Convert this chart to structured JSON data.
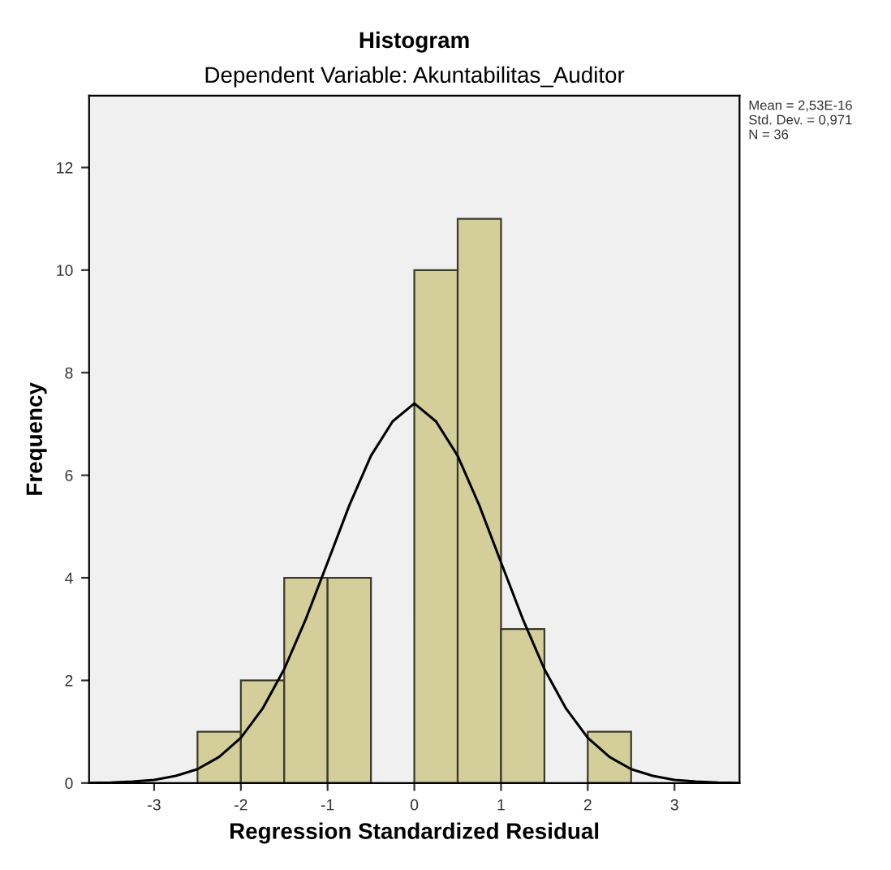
{
  "chart_data": {
    "type": "histogram",
    "title": "Histogram",
    "subtitle": "Dependent Variable: Akuntabilitas_Auditor",
    "xlabel": "Regression Standardized Residual",
    "ylabel": "Frequency",
    "bins": [
      -2.5,
      -2.0,
      -1.5,
      -1.0,
      -0.5,
      0.0,
      0.5,
      1.0,
      1.5,
      2.0,
      2.5
    ],
    "values": [
      1,
      2,
      4,
      4,
      0,
      10,
      11,
      3,
      0,
      1
    ],
    "color": "#d4cf9a",
    "series": [
      {
        "type": "line",
        "color": "#000000",
        "x": [
          -3.75,
          -3.5,
          -3.25,
          -3.0,
          -2.75,
          -2.5,
          -2.25,
          -2.0,
          -1.75,
          -1.5,
          -1.25,
          -1.0,
          -0.75,
          -0.5,
          -0.25,
          0.0,
          0.25,
          0.5,
          0.75,
          1.0,
          1.25,
          1.5,
          1.75,
          2.0,
          2.25,
          2.5,
          2.75,
          3.0,
          3.25,
          3.5,
          3.75
        ],
        "values": [
          0.0,
          0.01,
          0.03,
          0.06,
          0.14,
          0.27,
          0.51,
          0.88,
          1.45,
          2.22,
          3.2,
          4.3,
          5.41,
          6.38,
          7.05,
          7.4,
          7.05,
          6.38,
          5.41,
          4.3,
          3.2,
          2.22,
          1.45,
          0.88,
          0.51,
          0.27,
          0.14,
          0.06,
          0.03,
          0.01,
          0.0
        ]
      }
    ],
    "xlim": [
      -3.75,
      3.75
    ],
    "xticks": [
      -3,
      -2,
      -1,
      0,
      1,
      2,
      3
    ],
    "ylim": [
      0,
      13.4
    ],
    "yticks": [
      0,
      2,
      4,
      6,
      8,
      10,
      12
    ],
    "grid": false,
    "legend": false,
    "annotations": [
      "Mean = 2,53E-16",
      "Std. Dev. = 0,971",
      "N = 36"
    ]
  }
}
